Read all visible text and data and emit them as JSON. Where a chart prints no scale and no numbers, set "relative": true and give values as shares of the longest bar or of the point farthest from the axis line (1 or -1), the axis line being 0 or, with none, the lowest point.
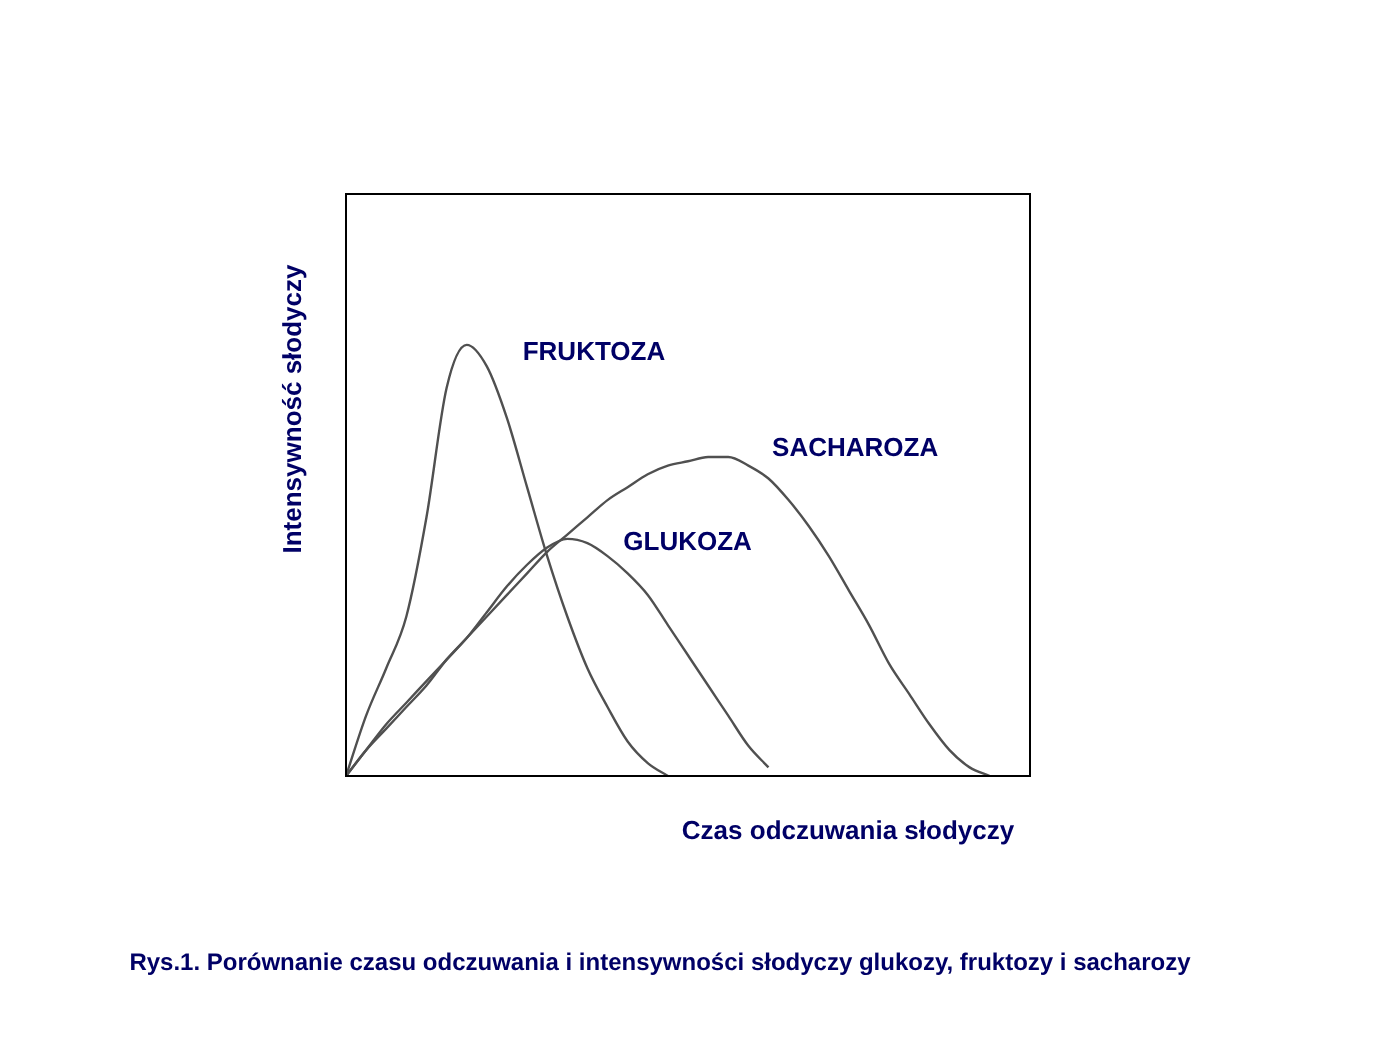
{
  "chart_data": {
    "type": "line",
    "relative": true,
    "xlabel": "Czas odczuwania słodyczy",
    "ylabel": "Intensywność słodyczy",
    "annotations": [
      "Rys.1. Porównanie czasu odczuwania i intensywności słodyczy glukozy, fruktozy  i sacharozy"
    ],
    "marker": "none",
    "legend": false,
    "categories": [
      null,
      null,
      null,
      null,
      null,
      null,
      null,
      null,
      null,
      null,
      null,
      null,
      null,
      null,
      null,
      null,
      null,
      null,
      null,
      null,
      null,
      null,
      null,
      null,
      null,
      null,
      null,
      null,
      null,
      null,
      null,
      null,
      null,
      null,
      null
    ],
    "series": [
      {
        "name": "FRUKTOZA",
        "color": "#505050",
        "values": [
          0,
          0.14,
          0.25,
          0.37,
          0.6,
          0.9,
          1,
          0.95,
          0.83,
          0.67,
          0.51,
          0.37,
          0.25,
          0.16,
          0.08,
          0.03,
          0,
          null,
          null,
          null,
          null,
          null,
          null,
          null,
          null,
          null,
          null,
          null,
          null,
          null,
          null,
          null,
          null,
          null,
          null
        ]
      },
      {
        "name": "GLUKOZA",
        "color": "#505050",
        "values": [
          0,
          0.06,
          0.12,
          0.17,
          0.22,
          0.27,
          0.32,
          0.38,
          0.44,
          0.49,
          0.53,
          0.55,
          0.54,
          0.51,
          0.47,
          0.42,
          0.35,
          0.28,
          0.21,
          0.14,
          0.07,
          0.02,
          null,
          null,
          null,
          null,
          null,
          null,
          null,
          null,
          null,
          null,
          null,
          null,
          null
        ]
      },
      {
        "name": "SACHAROZA",
        "color": "#505050",
        "values": [
          0,
          0.06,
          0.11,
          0.16,
          0.21,
          0.27,
          0.32,
          0.37,
          0.42,
          0.47,
          0.52,
          0.56,
          0.6,
          0.64,
          0.67,
          0.7,
          0.72,
          0.73,
          0.74,
          0.74,
          0.72,
          0.69,
          0.64,
          0.58,
          0.51,
          0.43,
          0.35,
          0.26,
          0.19,
          0.12,
          0.06,
          0.02,
          0,
          null,
          null
        ]
      }
    ]
  }
}
